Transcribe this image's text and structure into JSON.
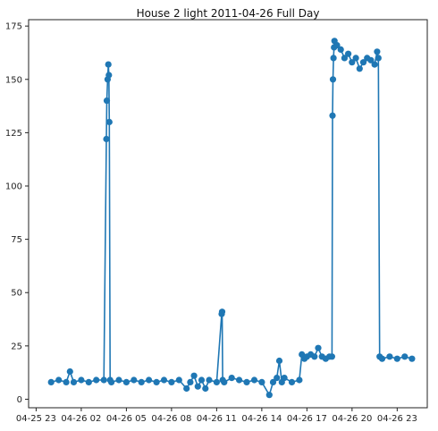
{
  "chart_data": {
    "type": "line",
    "title": "House 2 light 2011-04-26 Full Day",
    "xlabel": "",
    "ylabel": "",
    "xlim": [
      "2011-04-25 22:30",
      "2011-04-27 01:00"
    ],
    "ylim": [
      -4,
      178
    ],
    "grid": false,
    "x_ticks": [
      {
        "value": "2011-04-25 23:00",
        "label": "04-25 23"
      },
      {
        "value": "2011-04-26 02:00",
        "label": "04-26 02"
      },
      {
        "value": "2011-04-26 05:00",
        "label": "04-26 05"
      },
      {
        "value": "2011-04-26 08:00",
        "label": "04-26 08"
      },
      {
        "value": "2011-04-26 11:00",
        "label": "04-26 11"
      },
      {
        "value": "2011-04-26 14:00",
        "label": "04-26 14"
      },
      {
        "value": "2011-04-26 17:00",
        "label": "04-26 17"
      },
      {
        "value": "2011-04-26 20:00",
        "label": "04-26 20"
      },
      {
        "value": "2011-04-26 23:00",
        "label": "04-26 23"
      }
    ],
    "y_ticks": [
      {
        "value": 0,
        "label": "0"
      },
      {
        "value": 25,
        "label": "25"
      },
      {
        "value": 50,
        "label": "50"
      },
      {
        "value": 75,
        "label": "75"
      },
      {
        "value": 100,
        "label": "100"
      },
      {
        "value": 125,
        "label": "125"
      },
      {
        "value": 150,
        "label": "150"
      },
      {
        "value": 175,
        "label": "175"
      }
    ],
    "series": [
      {
        "color": "#1f77b4",
        "marker": "circle",
        "x": [
          "2011-04-26 00:00",
          "2011-04-26 00:30",
          "2011-04-26 01:00",
          "2011-04-26 01:15",
          "2011-04-26 01:30",
          "2011-04-26 02:00",
          "2011-04-26 02:30",
          "2011-04-26 03:00",
          "2011-04-26 03:30",
          "2011-04-26 03:40",
          "2011-04-26 03:42",
          "2011-04-26 03:45",
          "2011-04-26 03:48",
          "2011-04-26 03:50",
          "2011-04-26 03:52",
          "2011-04-26 03:55",
          "2011-04-26 04:00",
          "2011-04-26 04:30",
          "2011-04-26 05:00",
          "2011-04-26 05:30",
          "2011-04-26 06:00",
          "2011-04-26 06:30",
          "2011-04-26 07:00",
          "2011-04-26 07:30",
          "2011-04-26 08:00",
          "2011-04-26 08:30",
          "2011-04-26 09:00",
          "2011-04-26 09:15",
          "2011-04-26 09:30",
          "2011-04-26 09:45",
          "2011-04-26 10:00",
          "2011-04-26 10:15",
          "2011-04-26 10:30",
          "2011-04-26 11:00",
          "2011-04-26 11:20",
          "2011-04-26 11:22",
          "2011-04-26 11:24",
          "2011-04-26 11:30",
          "2011-04-26 12:00",
          "2011-04-26 12:30",
          "2011-04-26 13:00",
          "2011-04-26 13:30",
          "2011-04-26 14:00",
          "2011-04-26 14:30",
          "2011-04-26 14:45",
          "2011-04-26 15:00",
          "2011-04-26 15:10",
          "2011-04-26 15:20",
          "2011-04-26 15:30",
          "2011-04-26 16:00",
          "2011-04-26 16:30",
          "2011-04-26 16:40",
          "2011-04-26 16:50",
          "2011-04-26 17:00",
          "2011-04-26 17:15",
          "2011-04-26 17:30",
          "2011-04-26 17:45",
          "2011-04-26 18:00",
          "2011-04-26 18:15",
          "2011-04-26 18:30",
          "2011-04-26 18:40",
          "2011-04-26 18:42",
          "2011-04-26 18:44",
          "2011-04-26 18:46",
          "2011-04-26 18:48",
          "2011-04-26 18:50",
          "2011-04-26 19:00",
          "2011-04-26 19:15",
          "2011-04-26 19:30",
          "2011-04-26 19:45",
          "2011-04-26 20:00",
          "2011-04-26 20:15",
          "2011-04-26 20:30",
          "2011-04-26 20:45",
          "2011-04-26 21:00",
          "2011-04-26 21:15",
          "2011-04-26 21:30",
          "2011-04-26 21:40",
          "2011-04-26 21:45",
          "2011-04-26 21:50",
          "2011-04-26 22:00",
          "2011-04-26 22:30",
          "2011-04-26 23:00",
          "2011-04-26 23:30",
          "2011-04-26 23:59"
        ],
        "y": [
          8,
          9,
          8,
          13,
          8,
          9,
          8,
          9,
          9,
          122,
          140,
          150,
          157,
          152,
          130,
          9,
          8,
          9,
          8,
          9,
          8,
          9,
          8,
          9,
          8,
          9,
          5,
          8,
          11,
          6,
          9,
          5,
          9,
          8,
          40,
          41,
          9,
          8,
          10,
          9,
          8,
          9,
          8,
          2,
          8,
          10,
          18,
          8,
          10,
          8,
          9,
          21,
          19,
          20,
          21,
          20,
          24,
          20,
          19,
          20,
          20,
          133,
          150,
          160,
          165,
          168,
          166,
          164,
          160,
          162,
          158,
          160,
          155,
          158,
          160,
          159,
          157,
          163,
          160,
          20,
          19,
          20,
          19,
          20,
          19
        ]
      }
    ]
  }
}
